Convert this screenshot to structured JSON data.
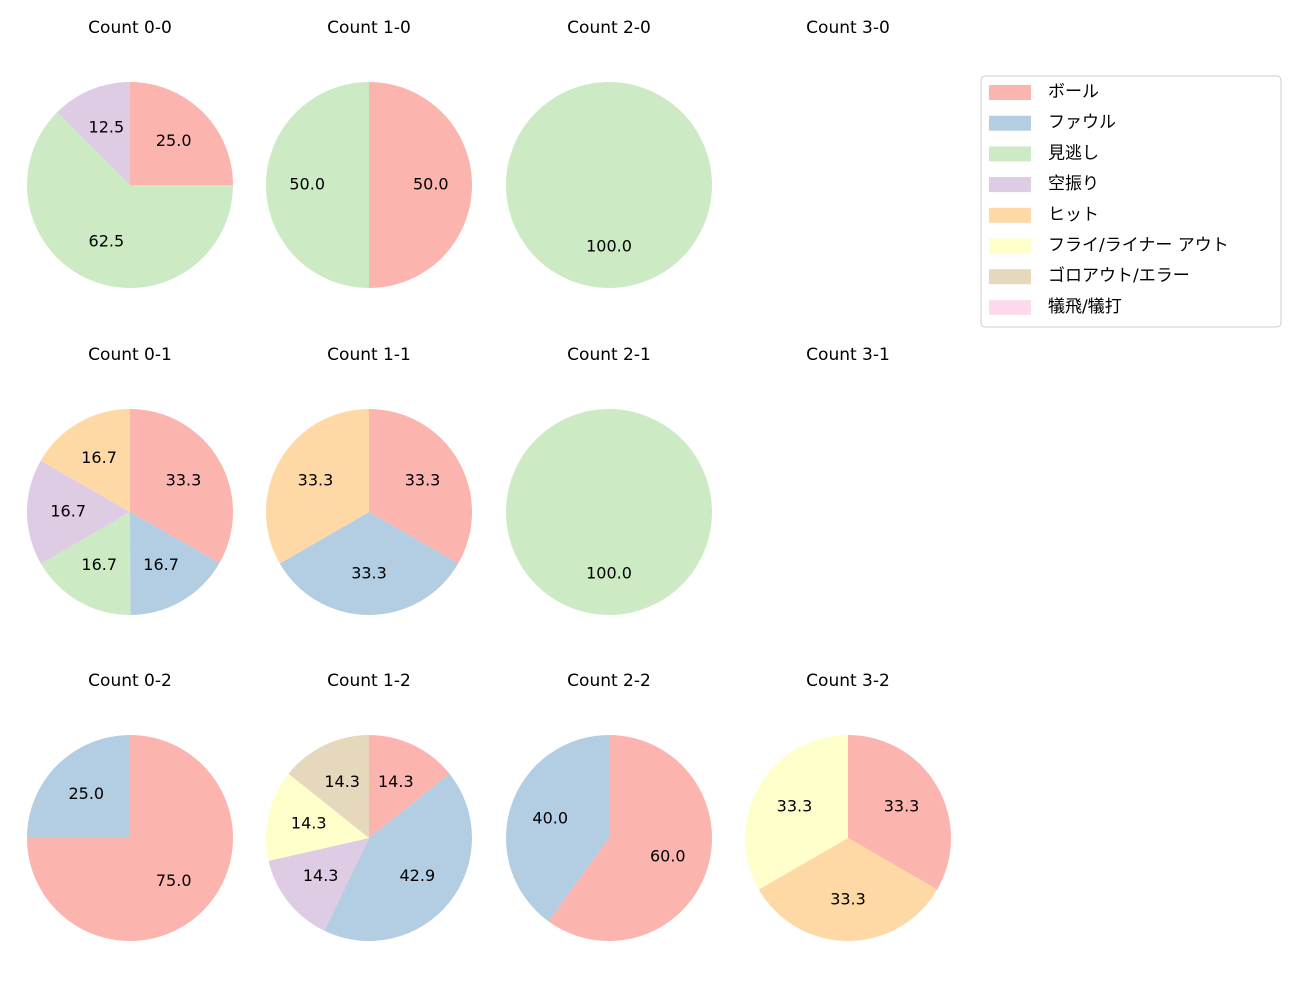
{
  "legend": {
    "labels": [
      "ボール",
      "ファウル",
      "見逃し",
      "空振り",
      "ヒット",
      "フライ/ライナー アウト",
      "ゴロアウト/エラー",
      "犠飛/犠打"
    ],
    "colors": [
      "#fbb4ae",
      "#b3cde3",
      "#ccebc5",
      "#decbe4",
      "#fed9a6",
      "#ffffcc",
      "#e5d8bd",
      "#fddaec"
    ]
  },
  "chart_data": [
    {
      "type": "pie",
      "title": "Count 0-0",
      "categories": [
        "ボール",
        "見逃し",
        "空振り"
      ],
      "values": [
        25,
        62.5,
        12.5
      ],
      "value_labels": [
        "25.0",
        "62.5",
        "12.5"
      ]
    },
    {
      "type": "pie",
      "title": "Count 1-0",
      "categories": [
        "ボール",
        "見逃し"
      ],
      "values": [
        50,
        50
      ],
      "value_labels": [
        "50.0",
        "50.0"
      ]
    },
    {
      "type": "pie",
      "title": "Count 2-0",
      "categories": [
        "見逃し"
      ],
      "values": [
        100
      ],
      "value_labels": [
        "100.0"
      ]
    },
    {
      "type": "pie",
      "title": "Count 3-0",
      "categories": [],
      "values": [],
      "value_labels": []
    },
    {
      "type": "pie",
      "title": "Count 0-1",
      "categories": [
        "ボール",
        "ファウル",
        "見逃し",
        "空振り",
        "ヒット"
      ],
      "values": [
        33.3,
        16.7,
        16.7,
        16.7,
        16.7
      ],
      "value_labels": [
        "33.3",
        "16.7",
        "16.7",
        "16.7",
        "16.7"
      ]
    },
    {
      "type": "pie",
      "title": "Count 1-1",
      "categories": [
        "ボール",
        "ファウル",
        "ヒット"
      ],
      "values": [
        33.3,
        33.3,
        33.3
      ],
      "value_labels": [
        "33.3",
        "33.3",
        "33.3"
      ]
    },
    {
      "type": "pie",
      "title": "Count 2-1",
      "categories": [
        "見逃し"
      ],
      "values": [
        100
      ],
      "value_labels": [
        "100.0"
      ]
    },
    {
      "type": "pie",
      "title": "Count 3-1",
      "categories": [],
      "values": [],
      "value_labels": []
    },
    {
      "type": "pie",
      "title": "Count 0-2",
      "categories": [
        "ボール",
        "ファウル"
      ],
      "values": [
        75,
        25
      ],
      "value_labels": [
        "75.0",
        "25.0"
      ]
    },
    {
      "type": "pie",
      "title": "Count 1-2",
      "categories": [
        "ボール",
        "ファウル",
        "空振り",
        "フライ/ライナー アウト",
        "ゴロアウト/エラー"
      ],
      "values": [
        14.3,
        42.9,
        14.3,
        14.3,
        14.3
      ],
      "value_labels": [
        "14.3",
        "42.9",
        "14.3",
        "14.3",
        "14.3"
      ]
    },
    {
      "type": "pie",
      "title": "Count 2-2",
      "categories": [
        "ボール",
        "ファウル"
      ],
      "values": [
        60,
        40
      ],
      "value_labels": [
        "60.0",
        "40.0"
      ]
    },
    {
      "type": "pie",
      "title": "Count 3-2",
      "categories": [
        "ボール",
        "ヒット",
        "フライ/ライナー アウト"
      ],
      "values": [
        33.3,
        33.3,
        33.3
      ],
      "value_labels": [
        "33.3",
        "33.3",
        "33.3"
      ]
    }
  ]
}
